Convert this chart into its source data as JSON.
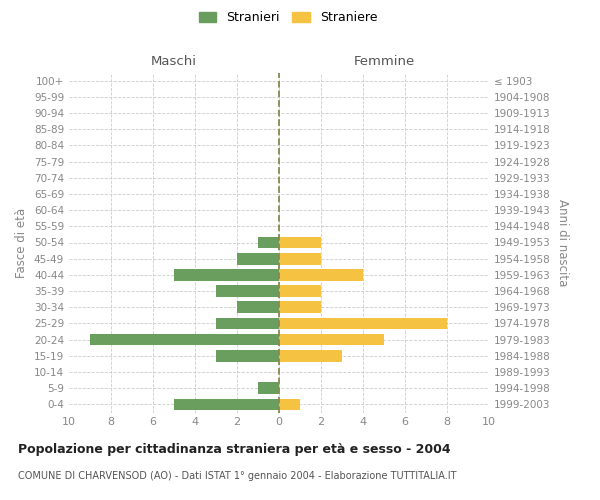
{
  "age_groups": [
    "0-4",
    "5-9",
    "10-14",
    "15-19",
    "20-24",
    "25-29",
    "30-34",
    "35-39",
    "40-44",
    "45-49",
    "50-54",
    "55-59",
    "60-64",
    "65-69",
    "70-74",
    "75-79",
    "80-84",
    "85-89",
    "90-94",
    "95-99",
    "100+"
  ],
  "birth_years": [
    "1999-2003",
    "1994-1998",
    "1989-1993",
    "1984-1988",
    "1979-1983",
    "1974-1978",
    "1969-1973",
    "1964-1968",
    "1959-1963",
    "1954-1958",
    "1949-1953",
    "1944-1948",
    "1939-1943",
    "1934-1938",
    "1929-1933",
    "1924-1928",
    "1919-1923",
    "1914-1918",
    "1909-1913",
    "1904-1908",
    "≤ 1903"
  ],
  "maschi": [
    5,
    1,
    0,
    3,
    9,
    3,
    2,
    3,
    5,
    2,
    1,
    0,
    0,
    0,
    0,
    0,
    0,
    0,
    0,
    0,
    0
  ],
  "femmine": [
    1,
    0,
    0,
    3,
    5,
    8,
    2,
    2,
    4,
    2,
    2,
    0,
    0,
    0,
    0,
    0,
    0,
    0,
    0,
    0,
    0
  ],
  "color_maschi": "#6a9e5f",
  "color_femmine": "#f5c242",
  "xlim": 10,
  "xlabel_maschi": "Maschi",
  "xlabel_femmine": "Femmine",
  "ylabel_left": "Fasce di età",
  "ylabel_right": "Anni di nascita",
  "title": "Popolazione per cittadinanza straniera per età e sesso - 2004",
  "subtitle": "COMUNE DI CHARVENSOD (AO) - Dati ISTAT 1° gennaio 2004 - Elaborazione TUTTITALIA.IT",
  "legend_maschi": "Stranieri",
  "legend_femmine": "Straniere",
  "bg_color": "#ffffff",
  "grid_color": "#cccccc",
  "center_line_color": "#888855"
}
